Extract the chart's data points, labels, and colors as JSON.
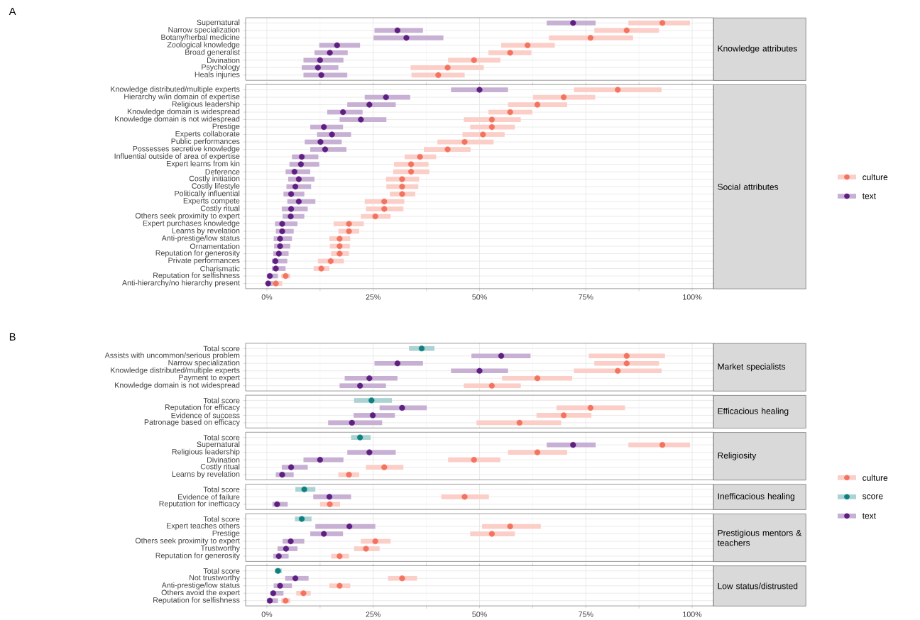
{
  "chart_data": [
    {
      "type": "scatter",
      "orientation": "horizontal",
      "y2label": "Knowledge attributes",
      "annotations": [
        "A"
      ],
      "tick_labels": "y",
      "grid": true,
      "marker": "circle",
      "xlim": [
        -5,
        105
      ],
      "xticks": [
        {
          "value": 0,
          "label": null
        },
        {
          "value": 25,
          "label": null
        },
        {
          "value": 50,
          "label": null
        },
        {
          "value": 75,
          "label": null
        },
        {
          "value": 100,
          "label": null
        }
      ],
      "categories": [
        "Supernatural",
        "Narrow specialization",
        "Botany/herbal medicine",
        "Zoological knowledge",
        "Broad generalist",
        "Divination",
        "Psychology",
        "Heals injuries"
      ],
      "series": [
        {
          "color": "#f4735f",
          "values": [
            93,
            84.6,
            76.1,
            61.3,
            57.2,
            48.7,
            42.5,
            40.3
          ],
          "errors": [
            [
              85,
              99.5
            ],
            [
              77,
              92.2
            ],
            [
              66.3,
              86.1
            ],
            [
              55.1,
              67.7
            ],
            [
              52.1,
              62.2
            ],
            [
              42.6,
              54.9
            ],
            [
              33.8,
              51
            ],
            [
              34,
              46.5
            ]
          ]
        },
        {
          "color": "#5e1e82",
          "values": [
            72,
            30.7,
            32.8,
            16.5,
            14.8,
            12.5,
            12,
            12.8
          ],
          "errors": [
            [
              65.8,
              77.3
            ],
            [
              25.3,
              36.7
            ],
            [
              25.1,
              41.5
            ],
            [
              12.3,
              21.9
            ],
            [
              11.2,
              19
            ],
            [
              8.6,
              18
            ],
            [
              8.2,
              16.8
            ],
            [
              8.6,
              18.9
            ]
          ]
        }
      ]
    },
    {
      "type": "scatter",
      "orientation": "horizontal",
      "y2label": "Social attributes",
      "legend": "right",
      "grid": true,
      "marker": "circle",
      "xlim": [
        -5,
        105
      ],
      "xticks": [
        {
          "value": 0,
          "label": "0%"
        },
        {
          "value": 25,
          "label": "25%"
        },
        {
          "value": 50,
          "label": "50%"
        },
        {
          "value": 75,
          "label": "75%"
        },
        {
          "value": 100,
          "label": "100%"
        }
      ],
      "categories": [
        "Knowledge distributed/multiple experts",
        "Hierarchy w/in domain of expertise",
        "Religious leadership",
        "Knowledge domain is widespread",
        "Knowledge domain is not widespread",
        "Prestige",
        "Experts collaborate",
        "Public performances",
        "Possesses secretive knowledge",
        "Influential outside of area of expertise",
        "Expert learns from kin",
        "Deference",
        "Costly initiation",
        "Costly lifestyle",
        "Politically influential",
        "Experts compete",
        "Costly ritual",
        "Others seek proximity to expert",
        "Expert purchases knowledge",
        "Learns by revelation",
        "Anti-prestige/low status",
        "Ornamentation",
        "Reputation for generosity",
        "Private performances",
        "Charismatic",
        "Reputation for selfishness",
        "Anti-hierarchy/no hierarchy present"
      ],
      "series": [
        {
          "name": "culture",
          "color": "#f4735f",
          "values": [
            82.5,
            69.8,
            63.6,
            57.2,
            52.9,
            52.9,
            50.8,
            46.5,
            42.5,
            36,
            33.9,
            33.9,
            31.8,
            31.8,
            31.8,
            27.6,
            27.6,
            25.5,
            19.3,
            19.3,
            17.1,
            17.1,
            17.1,
            15,
            12.8,
            4.4,
            2.1
          ],
          "errors": [
            [
              72.2,
              92.8
            ],
            [
              62.6,
              77.2
            ],
            [
              56.7,
              70.6
            ],
            [
              52.1,
              62.4
            ],
            [
              46.3,
              59.7
            ],
            [
              47.8,
              58.3
            ],
            [
              46,
              55.9
            ],
            [
              40.1,
              53.3
            ],
            [
              36.9,
              47.9
            ],
            [
              32.4,
              39.8
            ],
            [
              29.9,
              38
            ],
            [
              29.7,
              38.2
            ],
            [
              28,
              35.8
            ],
            [
              28.1,
              35.6
            ],
            [
              28.9,
              34.9
            ],
            [
              23,
              32.3
            ],
            [
              23.3,
              32.1
            ],
            [
              22.1,
              29.1
            ],
            [
              15.7,
              22.8
            ],
            [
              16.8,
              21.7
            ],
            [
              14.7,
              19.6
            ],
            [
              14.8,
              19.5
            ],
            [
              15.1,
              19.3
            ],
            [
              12,
              18.1
            ],
            [
              11,
              14.7
            ],
            [
              3.4,
              5.5
            ],
            [
              1,
              3.6
            ]
          ]
        },
        {
          "name": "text",
          "color": "#5e1e82",
          "values": [
            50,
            28,
            24.1,
            17.9,
            22.1,
            13.4,
            15.3,
            12.6,
            13.7,
            8.2,
            8,
            6.5,
            7.5,
            6.7,
            5.7,
            7.5,
            5.7,
            5.6,
            3.6,
            3.6,
            3.1,
            3.1,
            2.8,
            2,
            2.1,
            0.7,
            0.3
          ],
          "errors": [
            [
              43.3,
              56.7
            ],
            [
              23,
              33.7
            ],
            [
              18.9,
              30.3
            ],
            [
              14.2,
              22.5
            ],
            [
              17.1,
              28.1
            ],
            [
              10.2,
              17.9
            ],
            [
              11.8,
              19.8
            ],
            [
              8.9,
              17.6
            ],
            [
              10.2,
              18.7
            ],
            [
              5.9,
              12.1
            ],
            [
              5.3,
              12.3
            ],
            [
              4.4,
              10.2
            ],
            [
              5,
              11.2
            ],
            [
              4.6,
              10.4
            ],
            [
              3.9,
              8.8
            ],
            [
              4.8,
              11.4
            ],
            [
              3.5,
              9.6
            ],
            [
              3.7,
              8.8
            ],
            [
              1.9,
              7.2
            ],
            [
              2.1,
              6.3
            ],
            [
              1.6,
              5.9
            ],
            [
              1.7,
              5.5
            ],
            [
              1.5,
              5.1
            ],
            [
              1.2,
              4.8
            ],
            [
              1.2,
              4.4
            ],
            [
              0,
              2.6
            ],
            [
              0,
              1.4
            ]
          ]
        }
      ]
    },
    {
      "type": "scatter",
      "orientation": "horizontal",
      "y2label": "Market specialists",
      "annotations": [
        "B"
      ],
      "tick_labels": "y",
      "grid": true,
      "marker": "circle",
      "xlim": [
        -5,
        105
      ],
      "xticks": [
        {
          "value": 0,
          "label": null
        },
        {
          "value": 25,
          "label": null
        },
        {
          "value": 50,
          "label": null
        },
        {
          "value": 75,
          "label": null
        },
        {
          "value": 100,
          "label": null
        }
      ],
      "categories": [
        "Total score",
        "Assists with uncommon/serious problem",
        "Narrow specialization",
        "Knowledge distributed/multiple experts",
        "Payment to expert",
        "Knowledge domain is not widespread"
      ],
      "series": [
        {
          "color": "#f4735f",
          "values": [
            null,
            84.6,
            84.6,
            82.5,
            63.6,
            52.9
          ],
          "errors": [
            null,
            [
              75.7,
              93.6
            ],
            [
              77,
              92.2
            ],
            [
              72.2,
              92.8
            ],
            [
              55.3,
              71.8
            ],
            [
              46.3,
              59.7
            ]
          ]
        },
        {
          "color": "#0f8080",
          "values": [
            36.4,
            null,
            null,
            null,
            null,
            null
          ],
          "errors": [
            [
              33.4,
              39.4
            ],
            null,
            null,
            null,
            null,
            null
          ]
        },
        {
          "color": "#5e1e82",
          "values": [
            null,
            55.1,
            30.7,
            50,
            24.1,
            21.9
          ],
          "errors": [
            null,
            [
              48.1,
              62
            ],
            [
              25.3,
              36.7
            ],
            [
              43.3,
              56.7
            ],
            [
              18.3,
              30.7
            ],
            [
              17.1,
              28
            ]
          ]
        }
      ]
    },
    {
      "type": "scatter",
      "orientation": "horizontal",
      "y2label": "Efficacious healing",
      "tick_labels": "y",
      "grid": true,
      "marker": "circle",
      "xlim": [
        -5,
        105
      ],
      "xticks": [
        {
          "value": 0,
          "label": null
        },
        {
          "value": 25,
          "label": null
        },
        {
          "value": 50,
          "label": null
        },
        {
          "value": 75,
          "label": null
        },
        {
          "value": 100,
          "label": null
        }
      ],
      "categories": [
        "Total score",
        "Reputation for efficacy",
        "Evidence of success",
        "Patronage based on efficacy"
      ],
      "series": [
        {
          "color": "#f4735f",
          "values": [
            null,
            76.1,
            69.8,
            59.4
          ],
          "errors": [
            null,
            [
              68.1,
              84.2
            ],
            [
              63.4,
              76.3
            ],
            [
              49.3,
              69.2
            ]
          ]
        },
        {
          "color": "#0f8080",
          "values": [
            24.6,
            null,
            null,
            null
          ],
          "errors": [
            [
              20.5,
              29.4
            ],
            null,
            null,
            null
          ]
        },
        {
          "color": "#5e1e82",
          "values": [
            null,
            31.8,
            24.9,
            20
          ],
          "errors": [
            null,
            [
              26.5,
              37.6
            ],
            [
              20.4,
              30.1
            ],
            [
              14.4,
              27.1
            ]
          ]
        }
      ]
    },
    {
      "type": "scatter",
      "orientation": "horizontal",
      "y2label": "Religiosity",
      "tick_labels": "y",
      "grid": true,
      "marker": "circle",
      "xlim": [
        -5,
        105
      ],
      "xticks": [
        {
          "value": 0,
          "label": null
        },
        {
          "value": 25,
          "label": null
        },
        {
          "value": 50,
          "label": null
        },
        {
          "value": 75,
          "label": null
        },
        {
          "value": 100,
          "label": null
        }
      ],
      "categories": [
        "Total score",
        "Supernatural",
        "Religious leadership",
        "Divination",
        "Costly ritual",
        "Learns by revelation"
      ],
      "series": [
        {
          "color": "#f4735f",
          "values": [
            null,
            93,
            63.6,
            48.7,
            27.6,
            19.3
          ],
          "errors": [
            null,
            [
              85,
              99.5
            ],
            [
              56.7,
              70.6
            ],
            [
              42.6,
              54.9
            ],
            [
              23.3,
              32.1
            ],
            [
              16.8,
              21.7
            ]
          ]
        },
        {
          "color": "#0f8080",
          "values": [
            21.9,
            null,
            null,
            null,
            null,
            null
          ],
          "errors": [
            [
              19.8,
              24.4
            ],
            null,
            null,
            null,
            null,
            null
          ]
        },
        {
          "color": "#5e1e82",
          "values": [
            null,
            72,
            24.1,
            12.5,
            5.7,
            3.6
          ],
          "errors": [
            null,
            [
              65.8,
              77.3
            ],
            [
              18.9,
              30.3
            ],
            [
              8.6,
              18
            ],
            [
              3.5,
              9.6
            ],
            [
              2.1,
              6.3
            ]
          ]
        }
      ]
    },
    {
      "type": "scatter",
      "orientation": "horizontal",
      "y2label": "Inefficacious healing",
      "legend": "right",
      "tick_labels": "y",
      "grid": true,
      "marker": "circle",
      "xlim": [
        -5,
        105
      ],
      "xticks": [
        {
          "value": 0,
          "label": null
        },
        {
          "value": 25,
          "label": null
        },
        {
          "value": 50,
          "label": null
        },
        {
          "value": 75,
          "label": null
        },
        {
          "value": 100,
          "label": null
        }
      ],
      "categories": [
        "Total score",
        "Evidence of failure",
        "Reputation for inefficacy"
      ],
      "series": [
        {
          "name": "culture",
          "color": "#f4735f",
          "values": [
            null,
            46.5,
            14.8
          ],
          "errors": [
            null,
            [
              41,
              52.2
            ],
            [
              12.5,
              17.2
            ]
          ]
        },
        {
          "name": "score",
          "color": "#0f8080",
          "values": [
            8.8,
            null,
            null
          ],
          "errors": [
            [
              6.7,
              11.4
            ],
            null,
            null
          ]
        },
        {
          "name": "text",
          "color": "#5e1e82",
          "values": [
            null,
            14.7,
            2.4
          ],
          "errors": [
            null,
            [
              10.9,
              19.8
            ],
            [
              1.3,
              4.9
            ]
          ]
        }
      ]
    },
    {
      "type": "scatter",
      "orientation": "horizontal",
      "y2label": "Prestigious mentors & teachers",
      "tick_labels": "y",
      "grid": true,
      "marker": "circle",
      "xlim": [
        -5,
        105
      ],
      "xticks": [
        {
          "value": 0,
          "label": null
        },
        {
          "value": 25,
          "label": null
        },
        {
          "value": 50,
          "label": null
        },
        {
          "value": 75,
          "label": null
        },
        {
          "value": 100,
          "label": null
        }
      ],
      "categories": [
        "Total score",
        "Expert teaches others",
        "Prestige",
        "Others seek proximity to expert",
        "Trustworthy",
        "Reputation for generosity"
      ],
      "series": [
        {
          "color": "#f4735f",
          "values": [
            null,
            57.2,
            52.9,
            25.5,
            23.3,
            17.1
          ],
          "errors": [
            null,
            [
              50.6,
              64.4
            ],
            [
              47.8,
              58.3
            ],
            [
              22.1,
              29.1
            ],
            [
              20.5,
              26.5
            ],
            [
              15.1,
              19.3
            ]
          ]
        },
        {
          "color": "#0f8080",
          "values": [
            8.2,
            null,
            null,
            null,
            null,
            null
          ],
          "errors": [
            [
              6.6,
              10.5
            ],
            null,
            null,
            null,
            null,
            null
          ]
        },
        {
          "color": "#5e1e82",
          "values": [
            null,
            19.4,
            13.4,
            5.6,
            4.5,
            2.8
          ],
          "errors": [
            null,
            [
              11.4,
              25.5
            ],
            [
              10.2,
              17.9
            ],
            [
              3.7,
              8.8
            ],
            [
              2.5,
              7.2
            ],
            [
              1.5,
              5.1
            ]
          ]
        }
      ]
    },
    {
      "type": "scatter",
      "orientation": "horizontal",
      "y2label": "Low status/distrusted",
      "grid": true,
      "marker": "circle",
      "xlim": [
        -5,
        105
      ],
      "xticks": [
        {
          "value": 0,
          "label": "0%"
        },
        {
          "value": 25,
          "label": "25%"
        },
        {
          "value": 50,
          "label": "50%"
        },
        {
          "value": 75,
          "label": "75%"
        },
        {
          "value": 100,
          "label": "100%"
        }
      ],
      "categories": [
        "Total score",
        "Not trustworthy",
        "Anti-prestige/low status",
        "Others avoid the expert",
        "Reputation for selfishness"
      ],
      "series": [
        {
          "color": "#f4735f",
          "values": [
            null,
            31.8,
            17.1,
            8.6,
            4.4
          ],
          "errors": [
            null,
            [
              28.5,
              35.3
            ],
            [
              14.7,
              19.6
            ],
            [
              6.9,
              10.3
            ],
            [
              3.4,
              5.5
            ]
          ]
        },
        {
          "color": "#0f8080",
          "values": [
            2.6,
            null,
            null,
            null,
            null
          ],
          "errors": [
            [
              1.9,
              3.5
            ],
            null,
            null,
            null,
            null
          ]
        },
        {
          "color": "#5e1e82",
          "values": [
            null,
            6.7,
            3.1,
            1.5,
            0.7
          ],
          "errors": [
            null,
            [
              4.3,
              9.8
            ],
            [
              1.6,
              5.9
            ],
            [
              0.8,
              3.9
            ],
            [
              0,
              2.6
            ]
          ]
        }
      ]
    }
  ]
}
